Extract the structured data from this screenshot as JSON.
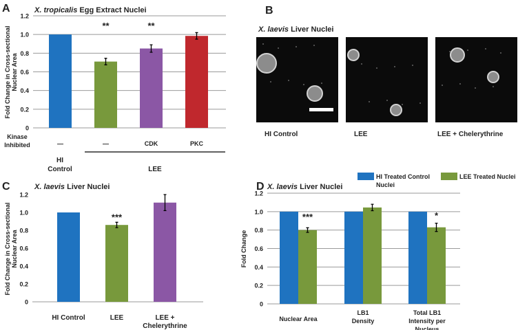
{
  "chart_data": [
    {
      "panel": "A",
      "type": "bar",
      "title_italic": "X. tropicalis",
      "title_rest": " Egg Extract Nuclei",
      "ylabel": [
        "Fold Change in Cross-sectional",
        "Nuclear Area"
      ],
      "ylim": [
        0,
        1.2
      ],
      "yticks": [
        "0",
        "0.2",
        "0.4",
        "0.6",
        "0.8",
        "1.0",
        "1.2"
      ],
      "grid": true,
      "row_label": [
        "Kinase",
        "Inhibited"
      ],
      "categories": [
        "—",
        "—",
        "CDK",
        "PKC"
      ],
      "group_labels": [
        [
          "HI",
          "Control"
        ],
        [
          "LEE"
        ]
      ],
      "values": [
        1.0,
        0.71,
        0.85,
        0.985
      ],
      "errors": [
        0,
        0.035,
        0.04,
        0.035
      ],
      "colors": [
        "#1f73c0",
        "#78993c",
        "#8b57a5",
        "#c0282d"
      ],
      "annotations": [
        "",
        "**",
        "**",
        ""
      ]
    },
    {
      "panel": "C",
      "type": "bar",
      "title_italic": "X. laevis",
      "title_rest": " Liver Nuclei",
      "ylabel": [
        "Fold Change in Cross-sectional",
        "Nuclear Area"
      ],
      "ylim": [
        0,
        1.2
      ],
      "yticks": [
        "0",
        "0.2",
        "0.4",
        "0.6",
        "0.8",
        "1.0",
        "1.2"
      ],
      "grid": false,
      "categories": [
        [
          "HI Control"
        ],
        [
          "LEE"
        ],
        [
          "LEE +",
          "Chelerythrine"
        ]
      ],
      "values": [
        1.0,
        0.86,
        1.11
      ],
      "errors": [
        0,
        0.03,
        0.09
      ],
      "colors": [
        "#1f73c0",
        "#78993c",
        "#8b57a5"
      ],
      "annotations": [
        "",
        "***",
        ""
      ]
    },
    {
      "panel": "D",
      "type": "bar",
      "title_italic": "X. laevis",
      "title_rest": " Liver Nuclei",
      "ylabel": [
        "Fold Change"
      ],
      "ylim": [
        0,
        1.2
      ],
      "yticks": [
        "0",
        "0.2",
        "0.4",
        "0.6",
        "0.8",
        "1.0",
        "1.2"
      ],
      "grid": true,
      "legend_position": "top",
      "categories": [
        [
          "Nuclear Area"
        ],
        [
          "LB1",
          "Density"
        ],
        [
          "Total LB1",
          "Intensity per",
          "Nucleus"
        ]
      ],
      "series": [
        {
          "name": [
            "HI Treated Control",
            "Nuclei"
          ],
          "color": "#1f73c0",
          "values": [
            1.0,
            1.0,
            1.0
          ],
          "errors": [
            0,
            0,
            0
          ]
        },
        {
          "name": [
            "LEE Treated Nuclei"
          ],
          "color": "#78993c",
          "values": [
            0.8,
            1.045,
            0.83
          ],
          "errors": [
            0.025,
            0.035,
            0.045
          ]
        }
      ],
      "annotations": [
        "***",
        "",
        "*"
      ]
    }
  ],
  "panel_b": {
    "panel": "B",
    "title_italic": "X. laevis",
    "title_rest": " Liver Nuclei",
    "images": [
      "HI Control",
      "LEE",
      "LEE + Chelerythrine"
    ]
  }
}
